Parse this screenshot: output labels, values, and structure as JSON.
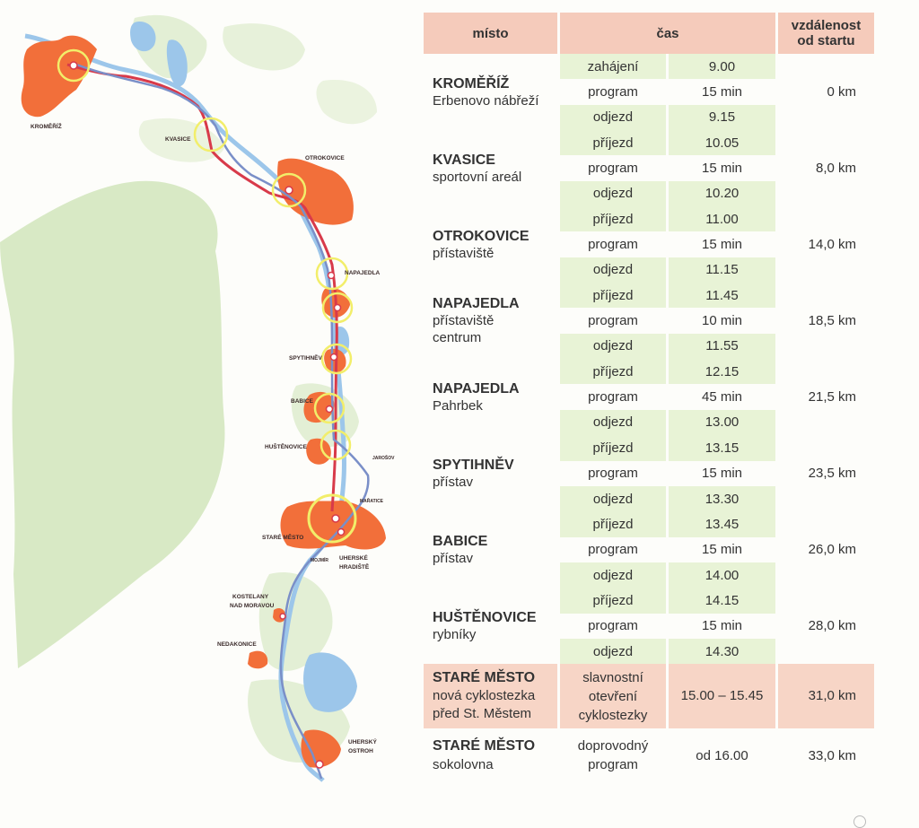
{
  "map": {
    "towns": [
      "KROMĚŘÍŽ",
      "KVASICE",
      "OTROKOVICE",
      "NAPAJEDLA",
      "SPYTIHNĚV",
      "BABICE",
      "HUŠTĚNOVICE",
      "JAROŠOV",
      "MAŘATICE",
      "STARÉ MĚSTO",
      "MOJMÍR",
      "UHERSKÉ",
      "HRADIŠTĚ",
      "KOSTELANY",
      "NAD MORAVOU",
      "NEDAKONICE",
      "UHERSKÝ",
      "OSTROH"
    ],
    "colors": {
      "urban": "#f26f3a",
      "vegetation": "#cfe4b8",
      "water": "#9cc6ea",
      "route_red": "#d83a4a",
      "route_blue": "#7a8fc8",
      "stop_ring": "#f2ee6a"
    }
  },
  "table": {
    "headers": {
      "place": "místo",
      "time": "čas",
      "distance_line1": "vzdálenost",
      "distance_line2": "od startu"
    },
    "rows": [
      {
        "name": "KROMĚŘÍŽ",
        "desc": "Erbenovo nábřeží",
        "dist": "0 km",
        "items": [
          {
            "act": "zahájení",
            "time": "9.00"
          },
          {
            "act": "program",
            "time": "15 min"
          },
          {
            "act": "odjezd",
            "time": "9.15"
          }
        ]
      },
      {
        "name": "KVASICE",
        "desc": "sportovní areál",
        "dist": "8,0 km",
        "items": [
          {
            "act": "příjezd",
            "time": "10.05"
          },
          {
            "act": "program",
            "time": "15 min"
          },
          {
            "act": "odjezd",
            "time": "10.20"
          }
        ]
      },
      {
        "name": "OTROKOVICE",
        "desc": "přístaviště",
        "dist": "14,0 km",
        "items": [
          {
            "act": "příjezd",
            "time": "11.00"
          },
          {
            "act": "program",
            "time": "15 min"
          },
          {
            "act": "odjezd",
            "time": "11.15"
          }
        ]
      },
      {
        "name": "NAPAJEDLA",
        "desc": "přístaviště",
        "desc2": "centrum",
        "dist": "18,5 km",
        "items": [
          {
            "act": "příjezd",
            "time": "11.45"
          },
          {
            "act": "program",
            "time": "10 min"
          },
          {
            "act": "odjezd",
            "time": "11.55"
          }
        ]
      },
      {
        "name": "NAPAJEDLA",
        "desc": "Pahrbek",
        "dist": "21,5 km",
        "items": [
          {
            "act": "příjezd",
            "time": "12.15"
          },
          {
            "act": "program",
            "time": "45 min"
          },
          {
            "act": "odjezd",
            "time": "13.00"
          }
        ]
      },
      {
        "name": "SPYTIHNĚV",
        "desc": "přístav",
        "dist": "23,5 km",
        "items": [
          {
            "act": "příjezd",
            "time": "13.15"
          },
          {
            "act": "program",
            "time": "15 min"
          },
          {
            "act": "odjezd",
            "time": "13.30"
          }
        ]
      },
      {
        "name": "BABICE",
        "desc": "přístav",
        "dist": "26,0 km",
        "items": [
          {
            "act": "příjezd",
            "time": "13.45"
          },
          {
            "act": "program",
            "time": "15 min"
          },
          {
            "act": "odjezd",
            "time": "14.00"
          }
        ]
      },
      {
        "name": "HUŠTĚNOVICE",
        "desc": "rybníky",
        "dist": "28,0 km",
        "items": [
          {
            "act": "příjezd",
            "time": "14.15"
          },
          {
            "act": "program",
            "time": "15 min"
          },
          {
            "act": "odjezd",
            "time": "14.30"
          }
        ]
      }
    ],
    "ceremony": {
      "name": "STARÉ MĚSTO",
      "desc1": "nová cyklostezka",
      "desc2": "před St. Městem",
      "act1": "slavnostní",
      "act2": "otevření",
      "act3": "cyklostezky",
      "time": "15.00 – 15.45",
      "dist": "31,0 km"
    },
    "final": {
      "name": "STARÉ MĚSTO",
      "desc": "sokolovna",
      "act1": "doprovodný",
      "act2": "program",
      "time": "od 16.00",
      "dist": "33,0 km"
    }
  }
}
